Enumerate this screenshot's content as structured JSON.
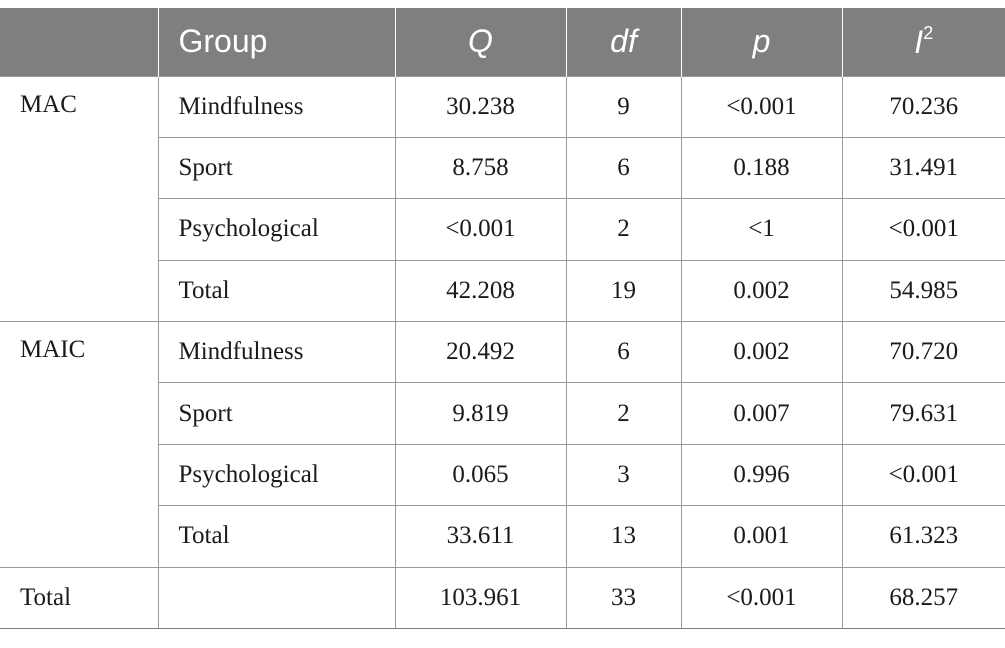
{
  "header": {
    "blank": "",
    "group": "Group",
    "q": "Q",
    "df": "df",
    "p": "p",
    "i2_base": "I",
    "i2_sup": "2"
  },
  "mac": {
    "label": "MAC",
    "rows": [
      {
        "group": "Mindfulness",
        "q": "30.238",
        "df": "9",
        "p": "<0.001",
        "i2": "70.236"
      },
      {
        "group": "Sport",
        "q": "8.758",
        "df": "6",
        "p": "0.188",
        "i2": "31.491"
      },
      {
        "group": "Psychological",
        "q": "<0.001",
        "df": "2",
        "p": "<1",
        "i2": "<0.001"
      },
      {
        "group": "Total",
        "q": "42.208",
        "df": "19",
        "p": "0.002",
        "i2": "54.985"
      }
    ]
  },
  "maic": {
    "label": "MAIC",
    "rows": [
      {
        "group": "Mindfulness",
        "q": "20.492",
        "df": "6",
        "p": "0.002",
        "i2": "70.720"
      },
      {
        "group": "Sport",
        "q": "9.819",
        "df": "2",
        "p": "0.007",
        "i2": "79.631"
      },
      {
        "group": "Psychological",
        "q": "0.065",
        "df": "3",
        "p": "0.996",
        "i2": "<0.001"
      },
      {
        "group": "Total",
        "q": "33.611",
        "df": "13",
        "p": "0.001",
        "i2": "61.323"
      }
    ]
  },
  "total": {
    "label": "Total",
    "group": "",
    "q": "103.961",
    "df": "33",
    "p": "<0.001",
    "i2": "68.257"
  }
}
